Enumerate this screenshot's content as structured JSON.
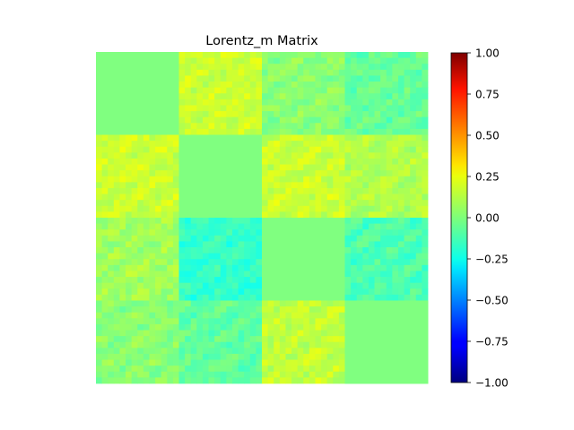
{
  "chart_data": {
    "type": "heatmap",
    "title": "Lorentz_m Matrix",
    "xlabel": "",
    "ylabel": "",
    "axes_visible": false,
    "grid": false,
    "colormap": "jet",
    "vmin": -1.0,
    "vmax": 1.0,
    "block_grid": {
      "rows": 4,
      "cols": 4,
      "approx_block_means": [
        [
          0.0,
          0.15,
          0.02,
          -0.05
        ],
        [
          0.15,
          0.0,
          0.15,
          0.1
        ],
        [
          0.07,
          -0.15,
          0.0,
          -0.1
        ],
        [
          0.02,
          -0.06,
          0.13,
          0.0
        ]
      ],
      "diagonal_blocks": "constant 0.00"
    },
    "colorbar": {
      "ticks": [
        1.0,
        0.75,
        0.5,
        0.25,
        0.0,
        -0.25,
        -0.5,
        -0.75,
        -1.0
      ],
      "tick_labels": [
        "1.00",
        "0.75",
        "0.50",
        "0.25",
        "0.00",
        "−0.25",
        "−0.50",
        "−0.75",
        "−1.00"
      ]
    }
  }
}
